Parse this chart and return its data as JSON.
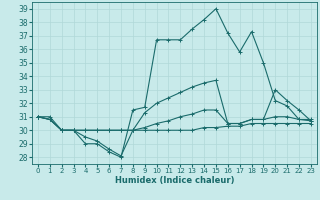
{
  "xlabel": "Humidex (Indice chaleur)",
  "bg_color": "#c8eaea",
  "grid_color": "#b0d8d8",
  "line_color": "#1a6b6b",
  "xlim": [
    -0.5,
    23.5
  ],
  "ylim": [
    27.5,
    39.5
  ],
  "yticks": [
    28,
    29,
    30,
    31,
    32,
    33,
    34,
    35,
    36,
    37,
    38,
    39
  ],
  "xticks": [
    0,
    1,
    2,
    3,
    4,
    5,
    6,
    7,
    8,
    9,
    10,
    11,
    12,
    13,
    14,
    15,
    16,
    17,
    18,
    19,
    20,
    21,
    22,
    23
  ],
  "series": [
    [
      31,
      31,
      30,
      30,
      29,
      29,
      28.4,
      28,
      31.5,
      31.7,
      36.7,
      36.7,
      36.7,
      37.5,
      38.2,
      39,
      37.2,
      35.8,
      37.3,
      35,
      32.2,
      31.8,
      30.8,
      30.8
    ],
    [
      31,
      30.8,
      30,
      30,
      29.5,
      29.2,
      28.6,
      28.1,
      30,
      31.3,
      32,
      32.4,
      32.8,
      33.2,
      33.5,
      33.7,
      30.5,
      30.5,
      30.8,
      30.8,
      33,
      32.2,
      31.5,
      30.7
    ],
    [
      31,
      30.8,
      30,
      30,
      30,
      30,
      30,
      30,
      30,
      30.2,
      30.5,
      30.7,
      31,
      31.2,
      31.5,
      31.5,
      30.5,
      30.5,
      30.8,
      30.8,
      31,
      31,
      30.8,
      30.7
    ],
    [
      31,
      30.8,
      30,
      30,
      30,
      30,
      30,
      30,
      30,
      30,
      30,
      30,
      30,
      30,
      30.2,
      30.2,
      30.3,
      30.3,
      30.5,
      30.5,
      30.5,
      30.5,
      30.5,
      30.5
    ]
  ]
}
